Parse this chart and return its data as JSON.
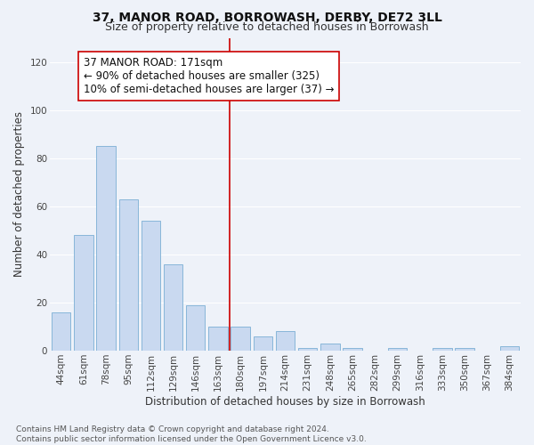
{
  "title": "37, MANOR ROAD, BORROWASH, DERBY, DE72 3LL",
  "subtitle": "Size of property relative to detached houses in Borrowash",
  "xlabel": "Distribution of detached houses by size in Borrowash",
  "ylabel": "Number of detached properties",
  "categories": [
    "44sqm",
    "61sqm",
    "78sqm",
    "95sqm",
    "112sqm",
    "129sqm",
    "146sqm",
    "163sqm",
    "180sqm",
    "197sqm",
    "214sqm",
    "231sqm",
    "248sqm",
    "265sqm",
    "282sqm",
    "299sqm",
    "316sqm",
    "333sqm",
    "350sqm",
    "367sqm",
    "384sqm"
  ],
  "values": [
    16,
    48,
    85,
    63,
    54,
    36,
    19,
    10,
    10,
    6,
    8,
    1,
    3,
    1,
    0,
    1,
    0,
    1,
    1,
    0,
    2
  ],
  "bar_color": "#c9d9f0",
  "bar_edge_color": "#7bafd4",
  "vline_color": "#cc0000",
  "annotation_text": "37 MANOR ROAD: 171sqm\n← 90% of detached houses are smaller (325)\n10% of semi-detached houses are larger (37) →",
  "annotation_box_color": "#ffffff",
  "annotation_box_edge_color": "#cc0000",
  "ylim": [
    0,
    130
  ],
  "yticks": [
    0,
    20,
    40,
    60,
    80,
    100,
    120
  ],
  "background_color": "#eef2f9",
  "grid_color": "#ffffff",
  "footer_text": "Contains HM Land Registry data © Crown copyright and database right 2024.\nContains public sector information licensed under the Open Government Licence v3.0.",
  "title_fontsize": 10,
  "subtitle_fontsize": 9,
  "xlabel_fontsize": 8.5,
  "ylabel_fontsize": 8.5,
  "tick_fontsize": 7.5,
  "annotation_fontsize": 8.5,
  "footer_fontsize": 6.5
}
